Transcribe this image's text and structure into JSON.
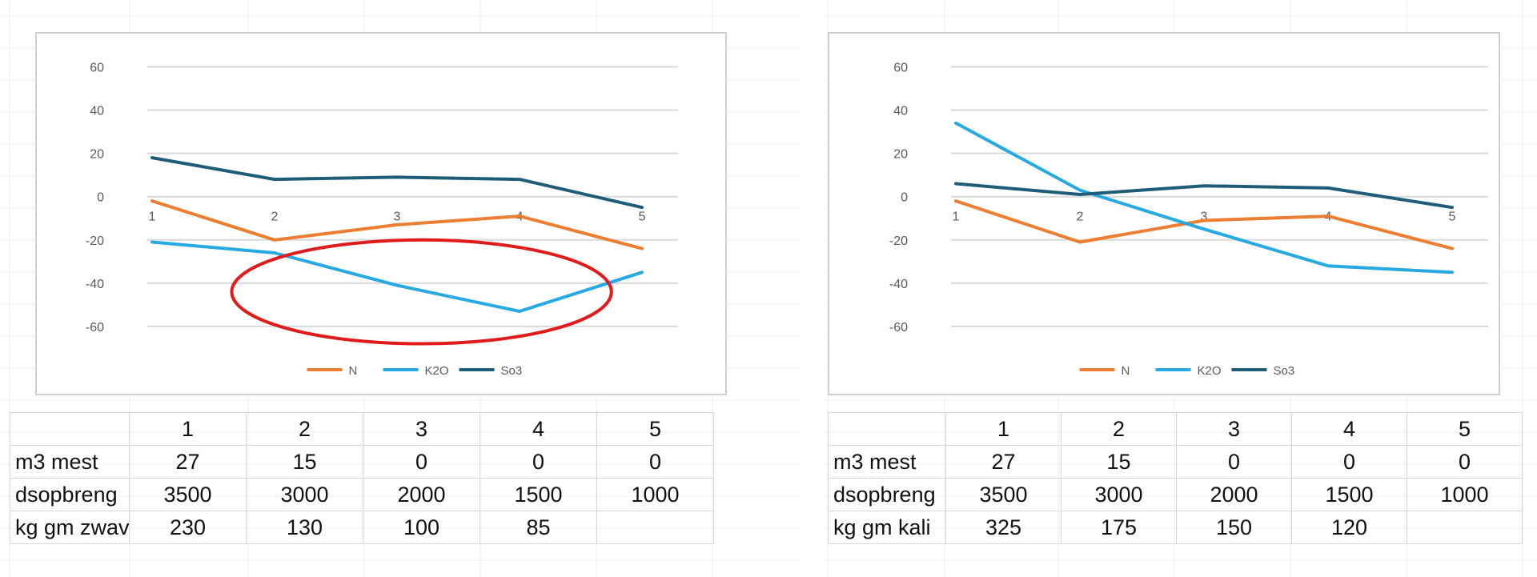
{
  "chart_data": [
    {
      "type": "line",
      "title": "",
      "xlabel": "",
      "ylabel": "",
      "x": [
        1,
        2,
        3,
        4,
        5
      ],
      "yticks": [
        -60,
        -40,
        -20,
        0,
        20,
        40,
        60
      ],
      "ylim": [
        -80,
        65
      ],
      "grid": true,
      "legend": "bottom",
      "series": [
        {
          "name": "N",
          "color": "#ed7d31",
          "values": [
            -2,
            -20,
            -13,
            -9,
            -24
          ]
        },
        {
          "name": "K2O",
          "color": "#27a9e1",
          "values": [
            -21,
            -26,
            -41,
            -53,
            -35
          ]
        },
        {
          "name": "So3",
          "color": "#1f5c7a",
          "values": [
            18,
            8,
            9,
            8,
            -5
          ]
        }
      ],
      "annotation": {
        "type": "ellipse",
        "color": "#e01b1b",
        "x_center": 3.2,
        "y_center": -44,
        "x_radius": 1.55,
        "y_radius": 24
      }
    },
    {
      "type": "line",
      "title": "",
      "xlabel": "",
      "ylabel": "",
      "x": [
        1,
        2,
        3,
        4,
        5
      ],
      "yticks": [
        -60,
        -40,
        -20,
        0,
        20,
        40,
        60
      ],
      "ylim": [
        -80,
        65
      ],
      "grid": true,
      "legend": "bottom",
      "series": [
        {
          "name": "N",
          "color": "#ed7d31",
          "values": [
            -2,
            -21,
            -11,
            -9,
            -24
          ]
        },
        {
          "name": "K2O",
          "color": "#27a9e1",
          "values": [
            34,
            3,
            -15,
            -32,
            -35
          ]
        },
        {
          "name": "So3",
          "color": "#1f5c7a",
          "values": [
            6,
            1,
            5,
            4,
            -5
          ]
        }
      ]
    }
  ],
  "tables": [
    {
      "header": [
        "1",
        "2",
        "3",
        "4",
        "5"
      ],
      "rows": [
        {
          "label": "m3 mest",
          "cells": [
            "27",
            "15",
            "0",
            "0",
            "0"
          ]
        },
        {
          "label": "dsopbreng",
          "cells": [
            "3500",
            "3000",
            "2000",
            "1500",
            "1000"
          ]
        },
        {
          "label": "kg gm zwav",
          "cells": [
            "230",
            "130",
            "100",
            "85",
            ""
          ]
        }
      ]
    },
    {
      "header": [
        "1",
        "2",
        "3",
        "4",
        "5"
      ],
      "rows": [
        {
          "label": "m3 mest",
          "cells": [
            "27",
            "15",
            "0",
            "0",
            "0"
          ]
        },
        {
          "label": "dsopbreng",
          "cells": [
            "3500",
            "3000",
            "2000",
            "1500",
            "1000"
          ]
        },
        {
          "label": "kg gm kali",
          "cells": [
            "325",
            "175",
            "150",
            "120",
            ""
          ]
        }
      ]
    }
  ]
}
